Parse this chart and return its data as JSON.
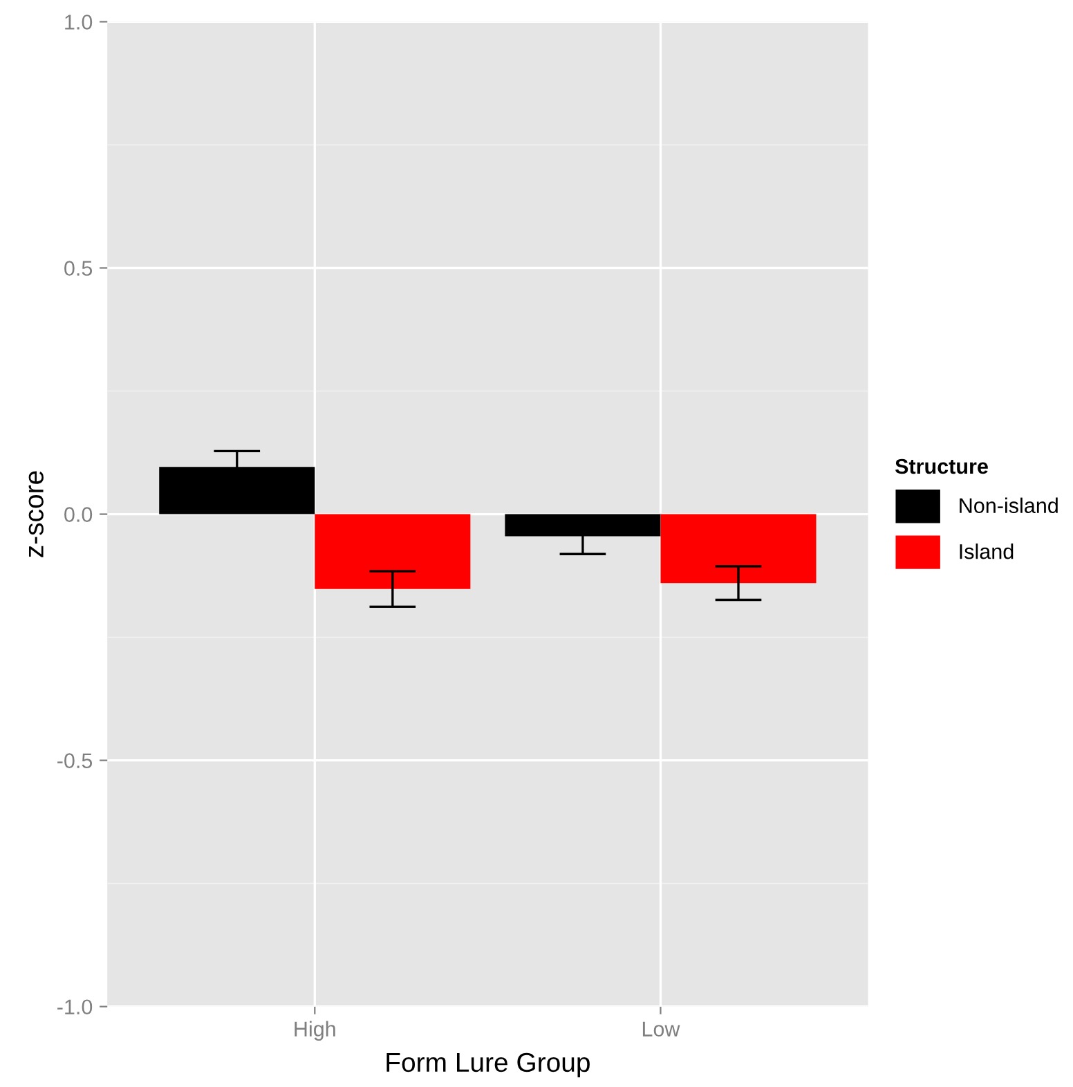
{
  "chart_data": {
    "type": "bar",
    "xlabel": "Form Lure Group",
    "ylabel": "z-score",
    "legend_title": "Structure",
    "categories": [
      "High",
      "Low"
    ],
    "series": [
      {
        "name": "Non-island",
        "color": "#000000",
        "values": [
          0.096,
          -0.045
        ],
        "errors": [
          0.032,
          0.036
        ]
      },
      {
        "name": "Island",
        "color": "#ff0000",
        "values": [
          -0.152,
          -0.14
        ],
        "errors": [
          0.036,
          0.034
        ]
      }
    ],
    "ylim": [
      -1.0,
      1.0
    ],
    "yticks": [
      {
        "value": -1.0,
        "label": "-1.0"
      },
      {
        "value": -0.5,
        "label": "-0.5"
      },
      {
        "value": 0.0,
        "label": "0.0"
      },
      {
        "value": 0.5,
        "label": "0.5"
      },
      {
        "value": 1.0,
        "label": "1.0"
      }
    ],
    "grid": true,
    "legend": "right"
  }
}
